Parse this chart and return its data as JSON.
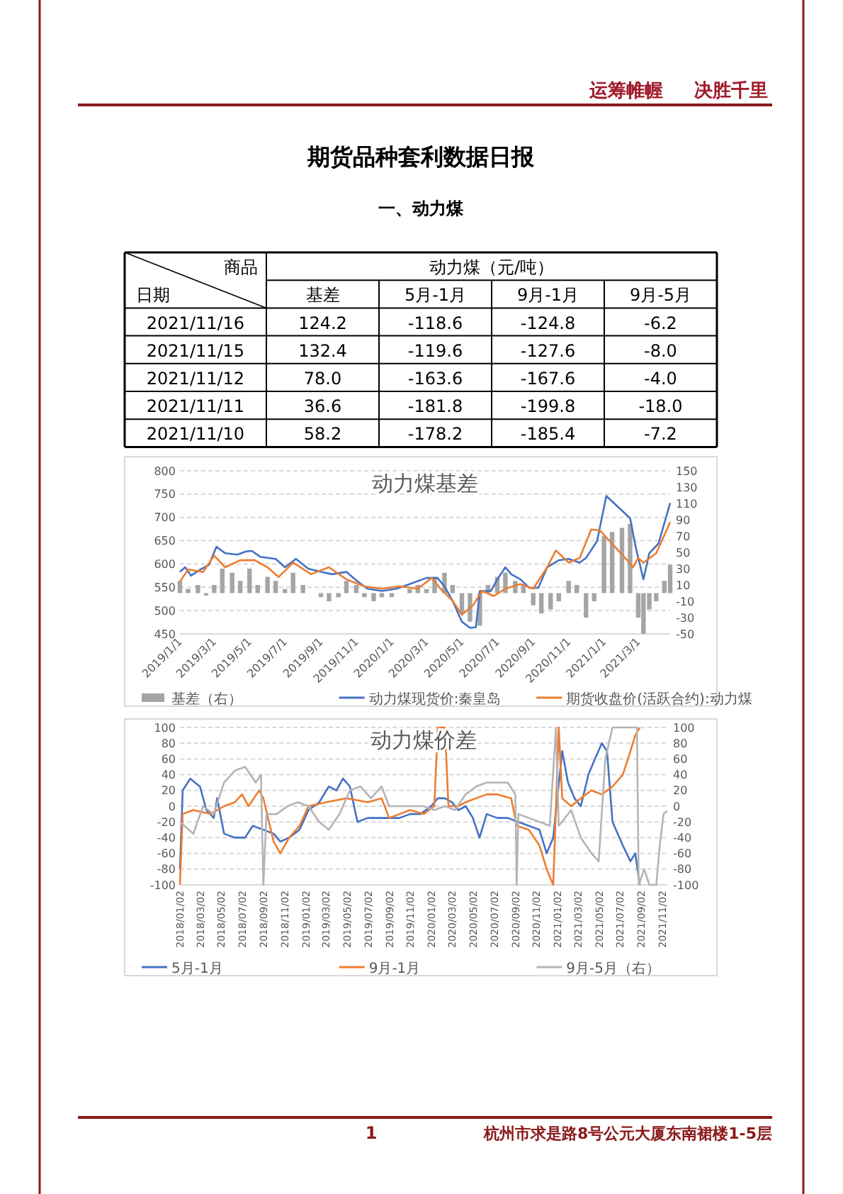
{
  "chart_data": [
    {
      "type": "other",
      "title": "期货品种套利数据日报",
      "subtitle": "一、动力煤",
      "annotations": [
        "运筹帷幄",
        "决胜千里",
        "1",
        "杭州市求是路8号公元大厦东南裙楼1-5层"
      ]
    },
    {
      "type": "other",
      "title": "动力煤（元/吨）",
      "annotations": [
        "商品",
        "日期"
      ],
      "categories": [
        "2021/11/16",
        "2021/11/15",
        "2021/11/12",
        "2021/11/11",
        "2021/11/10"
      ],
      "series": [
        {
          "name": "基差",
          "values": [
            124.2,
            132.4,
            78.0,
            36.6,
            58.2
          ],
          "value_labels": [
            "124.2",
            "132.4",
            "78.0",
            "36.6",
            "58.2"
          ]
        },
        {
          "name": "5月-1月",
          "values": [
            -118.6,
            -119.6,
            -163.6,
            -181.8,
            -178.2
          ],
          "value_labels": [
            "-118.6",
            "-119.6",
            "-163.6",
            "-181.8",
            "-178.2"
          ]
        },
        {
          "name": "9月-1月",
          "values": [
            -124.8,
            -127.6,
            -167.6,
            -199.8,
            -185.4
          ],
          "value_labels": [
            "-124.8",
            "-127.6",
            "-167.6",
            "-199.8",
            "-185.4"
          ]
        },
        {
          "name": "9月-5月",
          "values": [
            -6.2,
            -8.0,
            -4.0,
            -18.0,
            -7.2
          ],
          "value_labels": [
            "-6.2",
            "-8.0",
            "-4.0",
            "-18.0",
            "-7.2"
          ]
        }
      ]
    },
    {
      "type": "line",
      "title": "动力煤基差",
      "xlim": [
        "2019-01-01",
        "2021-04-25"
      ],
      "xticks": [
        {
          "value": "2019-01-01",
          "label": "2019/1/1"
        },
        {
          "value": "2019-03-01",
          "label": "2019/3/1"
        },
        {
          "value": "2019-05-01",
          "label": "2019/5/1"
        },
        {
          "value": "2019-07-01",
          "label": "2019/7/1"
        },
        {
          "value": "2019-09-01",
          "label": "2019/9/1"
        },
        {
          "value": "2019-11-01",
          "label": "2019/11/1"
        },
        {
          "value": "2020-01-01",
          "label": "2020/1/1"
        },
        {
          "value": "2020-03-01",
          "label": "2020/3/1"
        },
        {
          "value": "2020-05-01",
          "label": "2020/5/1"
        },
        {
          "value": "2020-07-01",
          "label": "2020/7/1"
        },
        {
          "value": "2020-09-01",
          "label": "2020/9/1"
        },
        {
          "value": "2020-11-01",
          "label": "2020/11/1"
        },
        {
          "value": "2021-01-01",
          "label": "2021/1/1"
        },
        {
          "value": "2021-03-01",
          "label": "2021/3/1"
        }
      ],
      "ylim": [
        450,
        800
      ],
      "yticks": [
        450,
        500,
        550,
        600,
        650,
        700,
        750,
        800
      ],
      "y2lim": [
        -50,
        150
      ],
      "y2ticks": [
        -50,
        -30,
        -10,
        10,
        30,
        50,
        70,
        90,
        110,
        130,
        150
      ],
      "grid": "y",
      "legend": "bottom",
      "series": [
        {
          "name": "基差（右）",
          "type": "bar",
          "axis": "y2",
          "color": "#a5a5a5",
          "x": [
            "2019-01-01",
            "2019-01-15",
            "2019-02-01",
            "2019-02-15",
            "2019-03-01",
            "2019-03-15",
            "2019-04-01",
            "2019-04-15",
            "2019-05-01",
            "2019-05-15",
            "2019-06-01",
            "2019-06-15",
            "2019-07-01",
            "2019-07-15",
            "2019-08-01",
            "2019-08-15",
            "2019-09-01",
            "2019-09-15",
            "2019-10-01",
            "2019-10-15",
            "2019-11-01",
            "2019-11-15",
            "2019-12-01",
            "2019-12-15",
            "2020-01-01",
            "2020-01-15",
            "2020-02-01",
            "2020-02-15",
            "2020-03-01",
            "2020-03-15",
            "2020-04-01",
            "2020-04-15",
            "2020-05-01",
            "2020-05-15",
            "2020-06-01",
            "2020-06-15",
            "2020-07-01",
            "2020-07-15",
            "2020-08-01",
            "2020-08-15",
            "2020-09-01",
            "2020-09-15",
            "2020-10-01",
            "2020-10-15",
            "2020-11-01",
            "2020-11-15",
            "2020-12-01",
            "2020-12-15",
            "2021-01-01",
            "2021-01-15",
            "2021-02-01",
            "2021-02-15",
            "2021-03-01",
            "2021-03-10",
            "2021-03-20",
            "2021-04-01",
            "2021-04-15",
            "2021-04-25"
          ],
          "values": [
            15,
            5,
            10,
            -3,
            10,
            30,
            25,
            15,
            30,
            10,
            20,
            15,
            5,
            25,
            10,
            0,
            -5,
            -10,
            -5,
            15,
            10,
            -5,
            -10,
            -5,
            -5,
            0,
            5,
            10,
            5,
            20,
            25,
            10,
            -25,
            -35,
            -40,
            10,
            20,
            25,
            15,
            10,
            -15,
            -25,
            -20,
            -10,
            15,
            10,
            -30,
            -10,
            70,
            75,
            80,
            85,
            -30,
            -50,
            -20,
            -10,
            15,
            35
          ]
        },
        {
          "name": "动力煤现货价:秦皇岛",
          "type": "line",
          "color": "#4472c4",
          "x": [
            "2019-01-01",
            "2019-01-10",
            "2019-01-20",
            "2019-02-05",
            "2019-02-20",
            "2019-03-05",
            "2019-03-20",
            "2019-04-10",
            "2019-04-25",
            "2019-05-05",
            "2019-05-20",
            "2019-06-15",
            "2019-07-01",
            "2019-07-20",
            "2019-08-10",
            "2019-09-01",
            "2019-09-20",
            "2019-10-15",
            "2019-11-01",
            "2019-11-20",
            "2019-12-15",
            "2020-01-10",
            "2020-02-01",
            "2020-03-01",
            "2020-03-20",
            "2020-04-01",
            "2020-04-15",
            "2020-05-01",
            "2020-05-15",
            "2020-05-25",
            "2020-06-01",
            "2020-06-20",
            "2020-07-01",
            "2020-07-15",
            "2020-07-25",
            "2020-08-10",
            "2020-08-25",
            "2020-09-10",
            "2020-09-25",
            "2020-10-15",
            "2020-11-01",
            "2020-11-20",
            "2020-12-01",
            "2020-12-20",
            "2021-01-05",
            "2021-02-15",
            "2021-02-25",
            "2021-03-10",
            "2021-03-20",
            "2021-04-05",
            "2021-04-25"
          ],
          "values": [
            583,
            593,
            575,
            588,
            598,
            637,
            623,
            620,
            627,
            628,
            615,
            611,
            593,
            611,
            590,
            583,
            578,
            583,
            565,
            547,
            542,
            547,
            557,
            570,
            570,
            552,
            521,
            476,
            463,
            464,
            542,
            542,
            567,
            593,
            578,
            567,
            549,
            549,
            593,
            608,
            611,
            603,
            613,
            649,
            746,
            698,
            634,
            567,
            623,
            644,
            731
          ]
        },
        {
          "name": "期货收盘价(活跃合约):动力煤",
          "type": "line",
          "color": "#ed7d31",
          "x": [
            "2019-01-01",
            "2019-01-15",
            "2019-02-10",
            "2019-03-01",
            "2019-03-20",
            "2019-04-15",
            "2019-05-10",
            "2019-06-01",
            "2019-06-20",
            "2019-07-15",
            "2019-08-15",
            "2019-09-15",
            "2019-10-15",
            "2019-11-15",
            "2019-12-15",
            "2020-01-15",
            "2020-02-15",
            "2020-03-10",
            "2020-03-25",
            "2020-04-15",
            "2020-05-01",
            "2020-05-20",
            "2020-06-05",
            "2020-06-25",
            "2020-07-15",
            "2020-08-10",
            "2020-09-01",
            "2020-09-25",
            "2020-10-10",
            "2020-11-01",
            "2020-11-20",
            "2020-12-10",
            "2020-12-25",
            "2021-02-10",
            "2021-02-20",
            "2021-03-01",
            "2021-03-10",
            "2021-04-01",
            "2021-04-25"
          ],
          "values": [
            562,
            588,
            583,
            618,
            593,
            608,
            608,
            593,
            572,
            603,
            578,
            593,
            567,
            552,
            547,
            552,
            547,
            570,
            547,
            521,
            491,
            511,
            542,
            531,
            547,
            557,
            547,
            593,
            629,
            603,
            613,
            674,
            672,
            608,
            593,
            613,
            603,
            623,
            690
          ]
        }
      ]
    },
    {
      "type": "line",
      "title": "动力煤价差",
      "xlim": [
        "2018-01-02",
        "2021-11-16"
      ],
      "xticks": [
        {
          "value": "2018-01-02",
          "label": "2018/01/02"
        },
        {
          "value": "2018-03-02",
          "label": "2018/03/02"
        },
        {
          "value": "2018-05-02",
          "label": "2018/05/02"
        },
        {
          "value": "2018-07-02",
          "label": "2018/07/02"
        },
        {
          "value": "2018-09-02",
          "label": "2018/09/02"
        },
        {
          "value": "2018-11-02",
          "label": "2018/11/02"
        },
        {
          "value": "2019-01-02",
          "label": "2019/01/02"
        },
        {
          "value": "2019-03-02",
          "label": "2019/03/02"
        },
        {
          "value": "2019-05-02",
          "label": "2019/05/02"
        },
        {
          "value": "2019-07-02",
          "label": "2019/07/02"
        },
        {
          "value": "2019-09-02",
          "label": "2019/09/02"
        },
        {
          "value": "2019-11-02",
          "label": "2019/11/02"
        },
        {
          "value": "2020-01-02",
          "label": "2020/01/02"
        },
        {
          "value": "2020-03-02",
          "label": "2020/03/02"
        },
        {
          "value": "2020-05-02",
          "label": "2020/05/02"
        },
        {
          "value": "2020-07-02",
          "label": "2020/07/02"
        },
        {
          "value": "2020-09-02",
          "label": "2020/09/02"
        },
        {
          "value": "2020-11-02",
          "label": "2020/11/02"
        },
        {
          "value": "2021-01-02",
          "label": "2021/01/02"
        },
        {
          "value": "2021-03-02",
          "label": "2021/03/02"
        },
        {
          "value": "2021-05-02",
          "label": "2021/05/02"
        },
        {
          "value": "2021-07-02",
          "label": "2021/07/02"
        },
        {
          "value": "2021-09-02",
          "label": "2021/09/02"
        },
        {
          "value": "2021-11-02",
          "label": "2021/11/02"
        }
      ],
      "ylim": [
        -100,
        100
      ],
      "yticks": [
        -100,
        -80,
        -60,
        -40,
        -20,
        0,
        20,
        40,
        60,
        80,
        100
      ],
      "y2lim": [
        -100,
        100
      ],
      "y2ticks": [
        -100,
        -80,
        -60,
        -40,
        -20,
        0,
        20,
        40,
        60,
        80,
        100
      ],
      "grid": "y",
      "legend": "bottom",
      "series": [
        {
          "name": "5月-1月",
          "color": "#4472c4",
          "x": [
            "2018-01-02",
            "2018-01-10",
            "2018-02-01",
            "2018-03-01",
            "2018-03-20",
            "2018-04-10",
            "2018-04-20",
            "2018-05-10",
            "2018-06-10",
            "2018-07-10",
            "2018-08-01",
            "2018-09-01",
            "2018-10-01",
            "2018-10-20",
            "2018-11-15",
            "2018-12-15",
            "2019-01-10",
            "2019-02-10",
            "2019-03-10",
            "2019-04-01",
            "2019-04-20",
            "2019-05-10",
            "2019-06-01",
            "2019-07-01",
            "2019-08-01",
            "2019-09-01",
            "2019-10-01",
            "2019-11-01",
            "2019-12-01",
            "2020-01-01",
            "2020-01-20",
            "2020-02-10",
            "2020-03-01",
            "2020-03-20",
            "2020-04-10",
            "2020-05-01",
            "2020-05-20",
            "2020-06-10",
            "2020-07-10",
            "2020-08-10",
            "2020-09-10",
            "2020-10-10",
            "2020-11-10",
            "2020-12-01",
            "2020-12-20",
            "2021-01-15",
            "2021-02-01",
            "2021-02-20",
            "2021-03-10",
            "2021-04-01",
            "2021-04-20",
            "2021-05-10",
            "2021-05-25",
            "2021-06-10",
            "2021-07-10",
            "2021-08-01",
            "2021-08-15",
            "2021-08-28"
          ],
          "values": [
            -80,
            20,
            35,
            25,
            -5,
            -15,
            10,
            -35,
            -40,
            -40,
            -25,
            -30,
            -35,
            -45,
            -40,
            -30,
            -5,
            5,
            25,
            20,
            35,
            25,
            -20,
            -15,
            -15,
            -15,
            -15,
            -10,
            -10,
            0,
            10,
            10,
            5,
            -5,
            0,
            -15,
            -40,
            -10,
            -15,
            -15,
            -20,
            -25,
            -30,
            -60,
            -40,
            70,
            30,
            10,
            0,
            40,
            60,
            80,
            70,
            -20,
            -50,
            -70,
            -60,
            -100
          ]
        },
        {
          "name": "9月-1月",
          "color": "#ed7d31",
          "x": [
            "2018-01-02",
            "2018-01-10",
            "2018-02-10",
            "2018-04-01",
            "2018-05-10",
            "2018-06-10",
            "2018-07-01",
            "2018-07-20",
            "2018-08-20",
            "2018-09-01",
            "2018-10-01",
            "2018-10-20",
            "2018-11-15",
            "2018-12-15",
            "2019-01-10",
            "2019-03-01",
            "2019-05-01",
            "2019-07-01",
            "2019-08-10",
            "2019-09-01",
            "2019-10-01",
            "2019-11-01",
            "2019-12-10",
            "2020-01-10",
            "2020-01-20",
            "2020-02-10",
            "2020-02-20",
            "2020-03-20",
            "2020-04-10",
            "2020-05-10",
            "2020-06-10",
            "2020-07-10",
            "2020-08-20",
            "2020-09-05",
            "2020-10-10",
            "2020-11-10",
            "2020-12-01",
            "2020-12-20",
            "2021-01-05",
            "2021-01-15",
            "2021-02-10",
            "2021-03-10",
            "2021-04-10",
            "2021-05-10",
            "2021-06-10",
            "2021-07-10",
            "2021-08-01",
            "2021-08-15",
            "2021-08-28"
          ],
          "values": [
            -100,
            -10,
            -5,
            -10,
            0,
            5,
            15,
            0,
            20,
            10,
            -45,
            -60,
            -40,
            -25,
            0,
            5,
            10,
            5,
            10,
            -15,
            -10,
            -5,
            -10,
            0,
            100,
            100,
            0,
            0,
            5,
            10,
            15,
            15,
            10,
            -25,
            -30,
            -50,
            -80,
            -100,
            100,
            10,
            0,
            10,
            20,
            15,
            25,
            40,
            70,
            90,
            100
          ]
        },
        {
          "name": "9月-5月（右）",
          "axis": "y2",
          "color": "#b4b4b4",
          "x": [
            "2018-01-02",
            "2018-02-10",
            "2018-03-10",
            "2018-04-10",
            "2018-05-10",
            "2018-06-10",
            "2018-07-10",
            "2018-08-10",
            "2018-08-25",
            "2018-09-01",
            "2018-09-10",
            "2018-10-10",
            "2018-11-10",
            "2018-12-10",
            "2019-01-10",
            "2019-02-10",
            "2019-03-10",
            "2019-04-10",
            "2019-05-10",
            "2019-06-10",
            "2019-07-10",
            "2019-08-10",
            "2019-09-01",
            "2019-10-10",
            "2019-11-10",
            "2019-12-10",
            "2020-01-10",
            "2020-02-10",
            "2020-03-10",
            "2020-04-10",
            "2020-05-10",
            "2020-06-10",
            "2020-07-10",
            "2020-08-10",
            "2020-09-01",
            "2020-09-05",
            "2020-09-10",
            "2020-10-10",
            "2020-11-10",
            "2020-12-10",
            "2020-12-28",
            "2021-01-05",
            "2021-02-10",
            "2021-03-10",
            "2021-04-10",
            "2021-05-01",
            "2021-05-20",
            "2021-06-10",
            "2021-07-10",
            "2021-08-01",
            "2021-08-20",
            "2021-08-25",
            "2021-09-10",
            "2021-09-25",
            "2021-10-15",
            "2021-10-25",
            "2021-11-05",
            "2021-11-16"
          ],
          "values": [
            -20,
            -35,
            0,
            -10,
            30,
            45,
            50,
            30,
            40,
            -100,
            -10,
            -10,
            0,
            5,
            0,
            -20,
            -30,
            -10,
            20,
            25,
            10,
            25,
            0,
            0,
            0,
            0,
            -5,
            0,
            -5,
            15,
            25,
            30,
            30,
            30,
            15,
            -100,
            -10,
            -15,
            -20,
            -25,
            100,
            -25,
            -5,
            -40,
            -60,
            -70,
            60,
            100,
            100,
            100,
            100,
            -100,
            -80,
            -100,
            -100,
            -50,
            -10,
            -6
          ]
        }
      ]
    }
  ]
}
